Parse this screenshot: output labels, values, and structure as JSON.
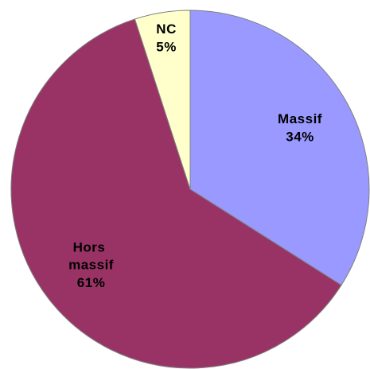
{
  "chart_data": {
    "type": "pie",
    "categories": [
      "Massif",
      "Hors massif",
      "NC"
    ],
    "values": [
      34,
      61,
      5
    ],
    "value_labels": [
      "34%",
      "61%",
      "5%"
    ],
    "colors": [
      "#9999ff",
      "#993366",
      "#ffffcc"
    ]
  }
}
